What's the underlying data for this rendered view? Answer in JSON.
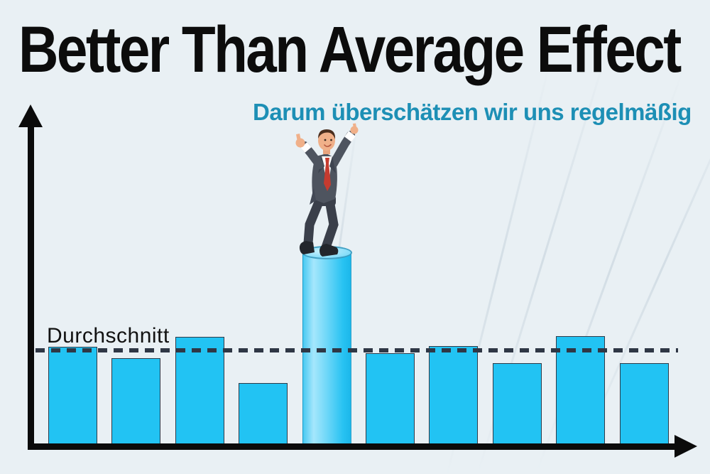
{
  "title": "Better Than Average Effect",
  "subtitle": "Darum überschätzen wir uns regelmäßig",
  "average_label": "Durchschnitt",
  "colors": {
    "background": "#E9F0F4",
    "bar": "#22C3F3",
    "bar_border": "#2E3B49",
    "cylinder_light": "#8FE0FA",
    "dash": "#2F3745",
    "axis": "#0B0B0B",
    "title_text": "#0C0C0C",
    "subtitle_text": "#1D8FB5",
    "tie_red": "#C63B2F",
    "suit_gray": "#4E545F"
  },
  "chart_data": {
    "type": "bar",
    "title": "Better Than Average Effect",
    "subtitle": "Darum überschätzen wir uns regelmäßig",
    "n_bars": 10,
    "values": [
      137,
      121,
      151,
      86,
      270,
      128,
      138,
      114,
      152,
      114
    ],
    "unit": "relative height (px), axes unlabeled",
    "average_line": {
      "label": "Durchschnitt",
      "value": 132,
      "style": "dashed"
    },
    "highlight_index": 4,
    "highlight_style": "3D cylinder with celebrating businessman on top",
    "axes": {
      "x_label": "",
      "y_label": "",
      "ticks": "none",
      "style": "black arrow axes"
    },
    "grid": false,
    "legend": false
  }
}
